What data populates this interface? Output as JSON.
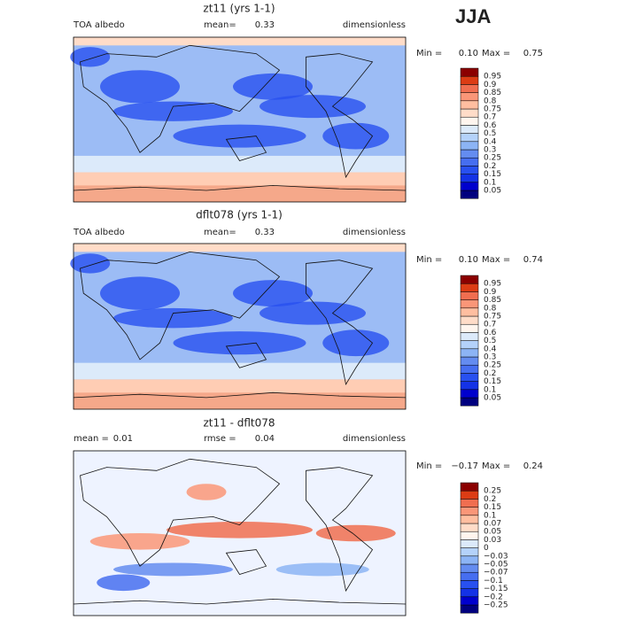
{
  "season": "JJA",
  "panels": [
    {
      "title": "zt11 (yrs 1-1)",
      "left": "TOA albedo",
      "stat_label": "mean=",
      "stat": "0.33",
      "units": "dimensionless",
      "min_label": "Min =",
      "min": "0.10",
      "max_label": "Max =",
      "max": "0.75",
      "levels": [
        "0.05",
        "0.1",
        "0.15",
        "0.2",
        "0.25",
        "0.3",
        "0.4",
        "0.5",
        "0.6",
        "0.7",
        "0.75",
        "0.8",
        "0.85",
        "0.9",
        "0.95"
      ],
      "colors": [
        "#00007f",
        "#0000cd",
        "#1432e6",
        "#2850f0",
        "#466ef0",
        "#648cf0",
        "#8cb4f5",
        "#b4d2fa",
        "#dceafa",
        "#fff5ee",
        "#ffdcc8",
        "#ffbea0",
        "#fa9678",
        "#f06e50",
        "#dc3c14",
        "#8b0000"
      ]
    },
    {
      "title": "dflt078 (yrs 1-1)",
      "left": "TOA albedo",
      "stat_label": "mean=",
      "stat": "0.33",
      "units": "dimensionless",
      "min_label": "Min =",
      "min": "0.10",
      "max_label": "Max =",
      "max": "0.74",
      "levels": [
        "0.05",
        "0.1",
        "0.15",
        "0.2",
        "0.25",
        "0.3",
        "0.4",
        "0.5",
        "0.6",
        "0.7",
        "0.75",
        "0.8",
        "0.85",
        "0.9",
        "0.95"
      ],
      "colors": [
        "#00007f",
        "#0000cd",
        "#1432e6",
        "#2850f0",
        "#466ef0",
        "#648cf0",
        "#8cb4f5",
        "#b4d2fa",
        "#dceafa",
        "#fff5ee",
        "#ffdcc8",
        "#ffbea0",
        "#fa9678",
        "#f06e50",
        "#dc3c14",
        "#8b0000"
      ]
    },
    {
      "title": "zt11 - dflt078",
      "left_label": "mean =",
      "left": "0.01",
      "stat_label": "rmse =",
      "stat": "0.04",
      "units": "dimensionless",
      "min_label": "Min =",
      "min": "−0.17",
      "max_label": "Max =",
      "max": "0.24",
      "levels": [
        "−0.25",
        "−0.2",
        "−0.15",
        "−0.1",
        "−0.07",
        "−0.05",
        "−0.03",
        "0",
        "0.03",
        "0.05",
        "0.07",
        "0.1",
        "0.15",
        "0.2",
        "0.25"
      ],
      "colors": [
        "#00007f",
        "#0000cd",
        "#1432e6",
        "#2850f0",
        "#466ef0",
        "#648cf0",
        "#8cb4f5",
        "#b4d2fa",
        "#dceafa",
        "#fff5ee",
        "#ffdcc8",
        "#ffbea0",
        "#fa9678",
        "#f06e50",
        "#dc3c14",
        "#8b0000"
      ]
    }
  ]
}
